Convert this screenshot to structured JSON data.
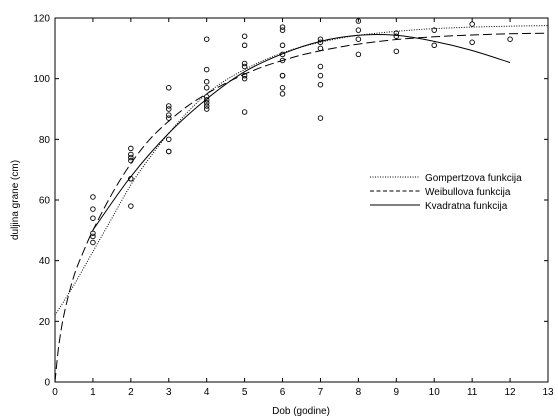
{
  "chart_data": {
    "type": "scatter",
    "title": "",
    "xlabel": "Dob (godine)",
    "ylabel": "duljina grane (cm)",
    "xlim": [
      0,
      13
    ],
    "ylim": [
      0,
      120
    ],
    "x_ticks": [
      0,
      1,
      2,
      3,
      4,
      5,
      6,
      7,
      8,
      9,
      10,
      11,
      12,
      13
    ],
    "y_ticks": [
      0,
      20,
      40,
      60,
      80,
      100,
      120
    ],
    "grid": false,
    "legend_position": "right",
    "points": [
      {
        "x": 1,
        "y": 61
      },
      {
        "x": 1,
        "y": 57
      },
      {
        "x": 1,
        "y": 54
      },
      {
        "x": 1,
        "y": 49
      },
      {
        "x": 1,
        "y": 48
      },
      {
        "x": 1,
        "y": 46
      },
      {
        "x": 2,
        "y": 77
      },
      {
        "x": 2,
        "y": 75
      },
      {
        "x": 2,
        "y": 74
      },
      {
        "x": 2,
        "y": 73
      },
      {
        "x": 2,
        "y": 67
      },
      {
        "x": 2,
        "y": 67
      },
      {
        "x": 2,
        "y": 58
      },
      {
        "x": 3,
        "y": 97
      },
      {
        "x": 3,
        "y": 91
      },
      {
        "x": 3,
        "y": 90
      },
      {
        "x": 3,
        "y": 88
      },
      {
        "x": 3,
        "y": 87
      },
      {
        "x": 3,
        "y": 80
      },
      {
        "x": 3,
        "y": 76
      },
      {
        "x": 3,
        "y": 76
      },
      {
        "x": 4,
        "y": 113
      },
      {
        "x": 4,
        "y": 103
      },
      {
        "x": 4,
        "y": 99
      },
      {
        "x": 4,
        "y": 97
      },
      {
        "x": 4,
        "y": 94
      },
      {
        "x": 4,
        "y": 93
      },
      {
        "x": 4,
        "y": 92
      },
      {
        "x": 4,
        "y": 91
      },
      {
        "x": 4,
        "y": 90
      },
      {
        "x": 5,
        "y": 114
      },
      {
        "x": 5,
        "y": 111
      },
      {
        "x": 5,
        "y": 105
      },
      {
        "x": 5,
        "y": 104
      },
      {
        "x": 5,
        "y": 101
      },
      {
        "x": 5,
        "y": 100
      },
      {
        "x": 5,
        "y": 89
      },
      {
        "x": 6,
        "y": 117
      },
      {
        "x": 6,
        "y": 116
      },
      {
        "x": 6,
        "y": 111
      },
      {
        "x": 6,
        "y": 108
      },
      {
        "x": 6,
        "y": 106
      },
      {
        "x": 6,
        "y": 101
      },
      {
        "x": 6,
        "y": 101
      },
      {
        "x": 6,
        "y": 97
      },
      {
        "x": 6,
        "y": 95
      },
      {
        "x": 7,
        "y": 113
      },
      {
        "x": 7,
        "y": 112
      },
      {
        "x": 7,
        "y": 110
      },
      {
        "x": 7,
        "y": 104
      },
      {
        "x": 7,
        "y": 101
      },
      {
        "x": 7,
        "y": 98
      },
      {
        "x": 7,
        "y": 87
      },
      {
        "x": 8,
        "y": 119
      },
      {
        "x": 8,
        "y": 116
      },
      {
        "x": 8,
        "y": 113
      },
      {
        "x": 8,
        "y": 108
      },
      {
        "x": 9,
        "y": 115
      },
      {
        "x": 9,
        "y": 114
      },
      {
        "x": 9,
        "y": 109
      },
      {
        "x": 10,
        "y": 116
      },
      {
        "x": 10,
        "y": 111
      },
      {
        "x": 11,
        "y": 118
      },
      {
        "x": 11,
        "y": 112
      },
      {
        "x": 12,
        "y": 113
      }
    ],
    "series": [
      {
        "name": "Gompertzova funkcija",
        "style": "dotted",
        "x": [
          0,
          0.5,
          1,
          1.5,
          2,
          2.5,
          3,
          3.5,
          4,
          4.5,
          5,
          5.5,
          6,
          6.5,
          7,
          7.5,
          8,
          8.5,
          9,
          9.5,
          10,
          11,
          12,
          13
        ],
        "y": [
          22,
          32,
          43,
          54,
          65,
          74,
          82,
          89,
          95,
          99.5,
          103,
          106,
          108.5,
          110.5,
          112,
          113.3,
          114.3,
          115,
          115.6,
          116.1,
          116.5,
          117,
          117.3,
          117.5
        ]
      },
      {
        "name": "Weibullova funkcija",
        "style": "dashed",
        "x": [
          0,
          0.1,
          0.25,
          0.5,
          0.75,
          1,
          1.5,
          2,
          2.5,
          3,
          3.5,
          4,
          4.5,
          5,
          5.5,
          6,
          6.5,
          7,
          7.5,
          8,
          9,
          10,
          11,
          12,
          13
        ],
        "y": [
          0,
          12,
          23,
          35,
          43,
          50,
          62,
          72,
          80,
          86,
          91,
          95,
          98.5,
          101.5,
          104,
          106,
          107.8,
          109.2,
          110.4,
          111.4,
          112.9,
          113.8,
          114.4,
          114.8,
          115
        ]
      },
      {
        "name": "Kvadratna funkcija",
        "style": "solid",
        "x": [
          1,
          2,
          3,
          4,
          5,
          6,
          7,
          8,
          9,
          10,
          11,
          12
        ],
        "y": [
          50.1,
          67.7,
          82.0,
          93.3,
          102.3,
          108.2,
          112.3,
          114.3,
          114.3,
          112.3,
          109.3,
          105.3
        ]
      }
    ]
  }
}
